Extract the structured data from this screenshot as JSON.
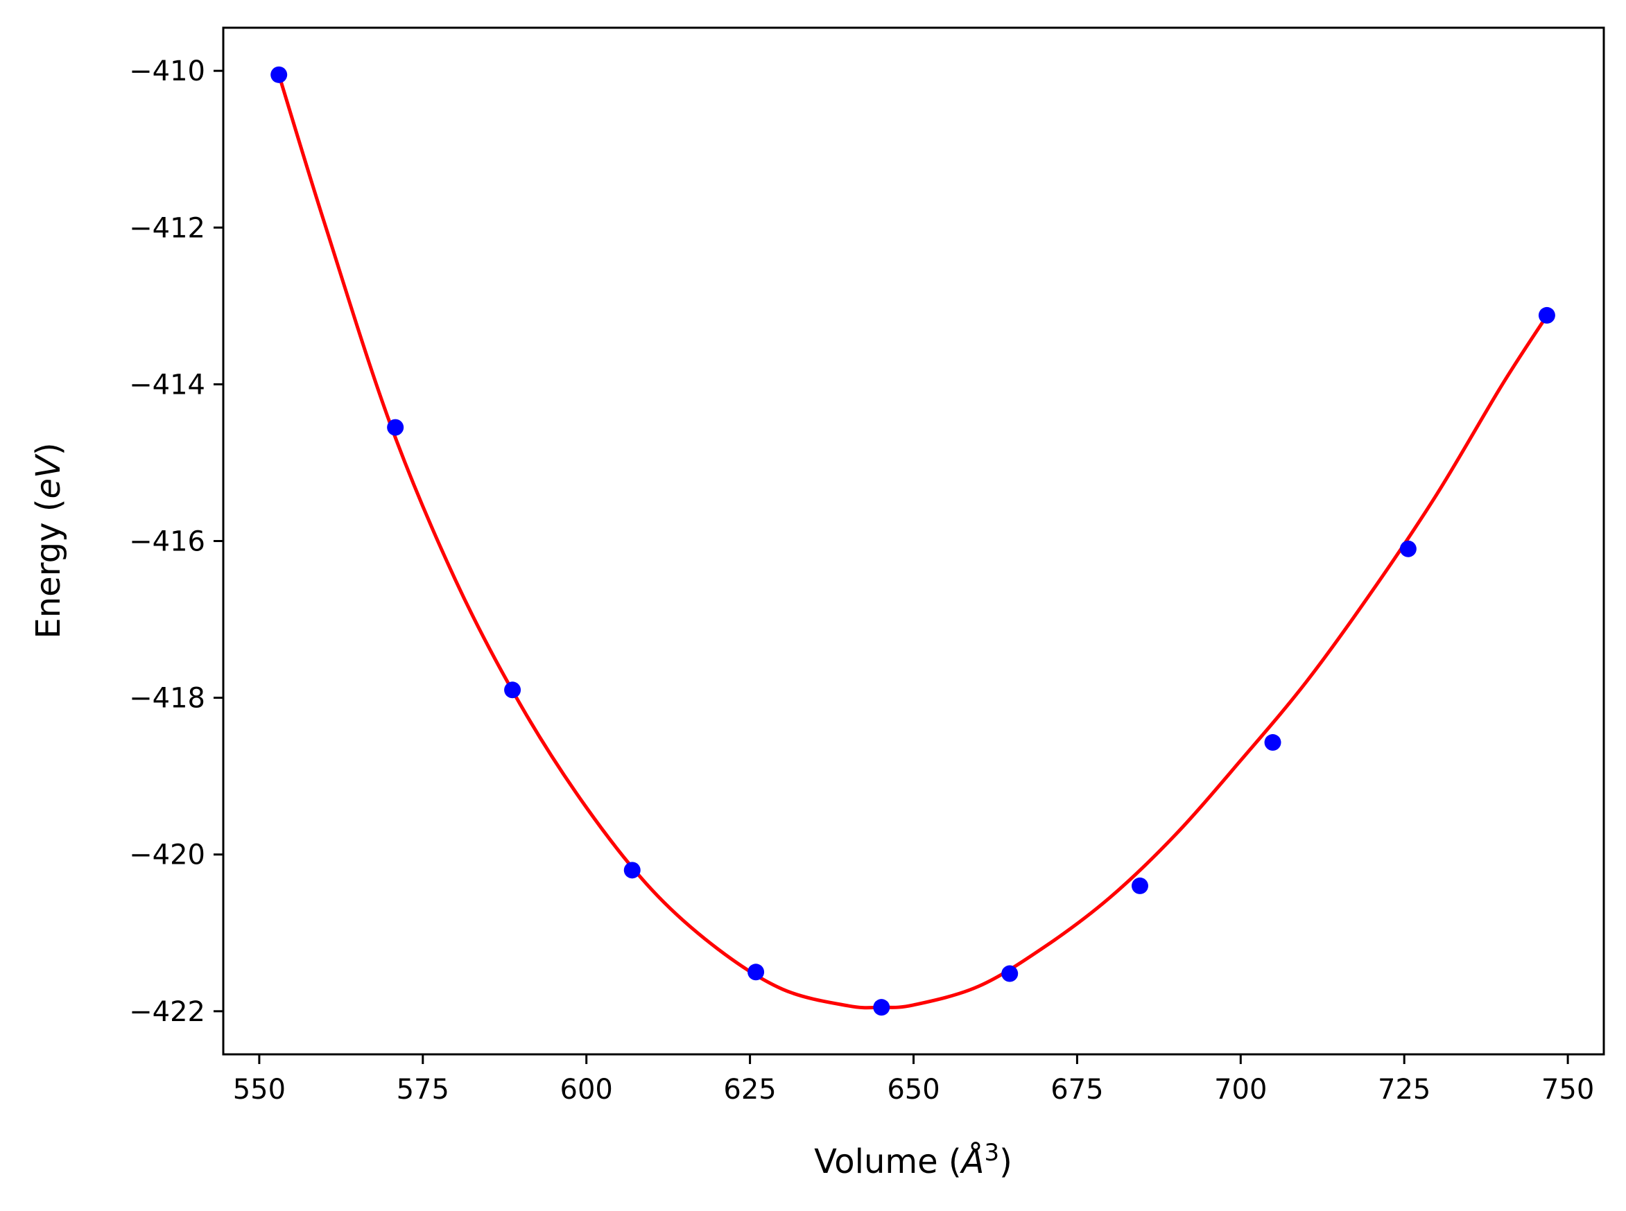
{
  "chart_data": {
    "type": "scatter",
    "title": "",
    "xlabel": "Volume (Å³)",
    "ylabel": "Energy (eV)",
    "xlabel_parts": {
      "prefix": "Volume (",
      "symbol": "Å",
      "exponent": "3",
      "suffix": ")"
    },
    "ylabel_parts": {
      "prefix": "Energy (",
      "symbol": "eV",
      "suffix": ")"
    },
    "xlim": [
      544.5,
      755.5
    ],
    "ylim": [
      -422.55,
      -409.45
    ],
    "xticks": [
      550,
      575,
      600,
      625,
      650,
      675,
      700,
      725,
      750
    ],
    "yticks": [
      -422,
      -420,
      -418,
      -416,
      -414,
      -412,
      -410
    ],
    "xtick_labels": [
      "550",
      "575",
      "600",
      "625",
      "650",
      "675",
      "700",
      "725",
      "750"
    ],
    "ytick_labels": [
      "−422",
      "−420",
      "−418",
      "−416",
      "−414",
      "−412",
      "−410"
    ],
    "grid": false,
    "series": [
      {
        "kind": "points",
        "color": "#0000ff",
        "x": [
          553.0,
          570.8,
          588.7,
          607.0,
          625.9,
          645.1,
          664.7,
          684.6,
          704.9,
          725.6,
          746.8
        ],
        "y": [
          -410.05,
          -414.55,
          -417.9,
          -420.2,
          -421.5,
          -421.95,
          -421.52,
          -420.4,
          -418.57,
          -416.1,
          -413.12
        ]
      },
      {
        "kind": "fit-line",
        "color": "#ff0000",
        "x": [
          553,
          560,
          570,
          580,
          590,
          600,
          610,
          620,
          630,
          640,
          645,
          650,
          660,
          670,
          680,
          690,
          700,
          710,
          720,
          730,
          740,
          747
        ],
        "y": [
          -410.05,
          -411.95,
          -414.5,
          -416.5,
          -418.1,
          -419.4,
          -420.45,
          -421.2,
          -421.72,
          -421.93,
          -421.95,
          -421.92,
          -421.68,
          -421.18,
          -420.55,
          -419.75,
          -418.8,
          -417.8,
          -416.65,
          -415.4,
          -414.0,
          -413.1
        ]
      }
    ]
  }
}
